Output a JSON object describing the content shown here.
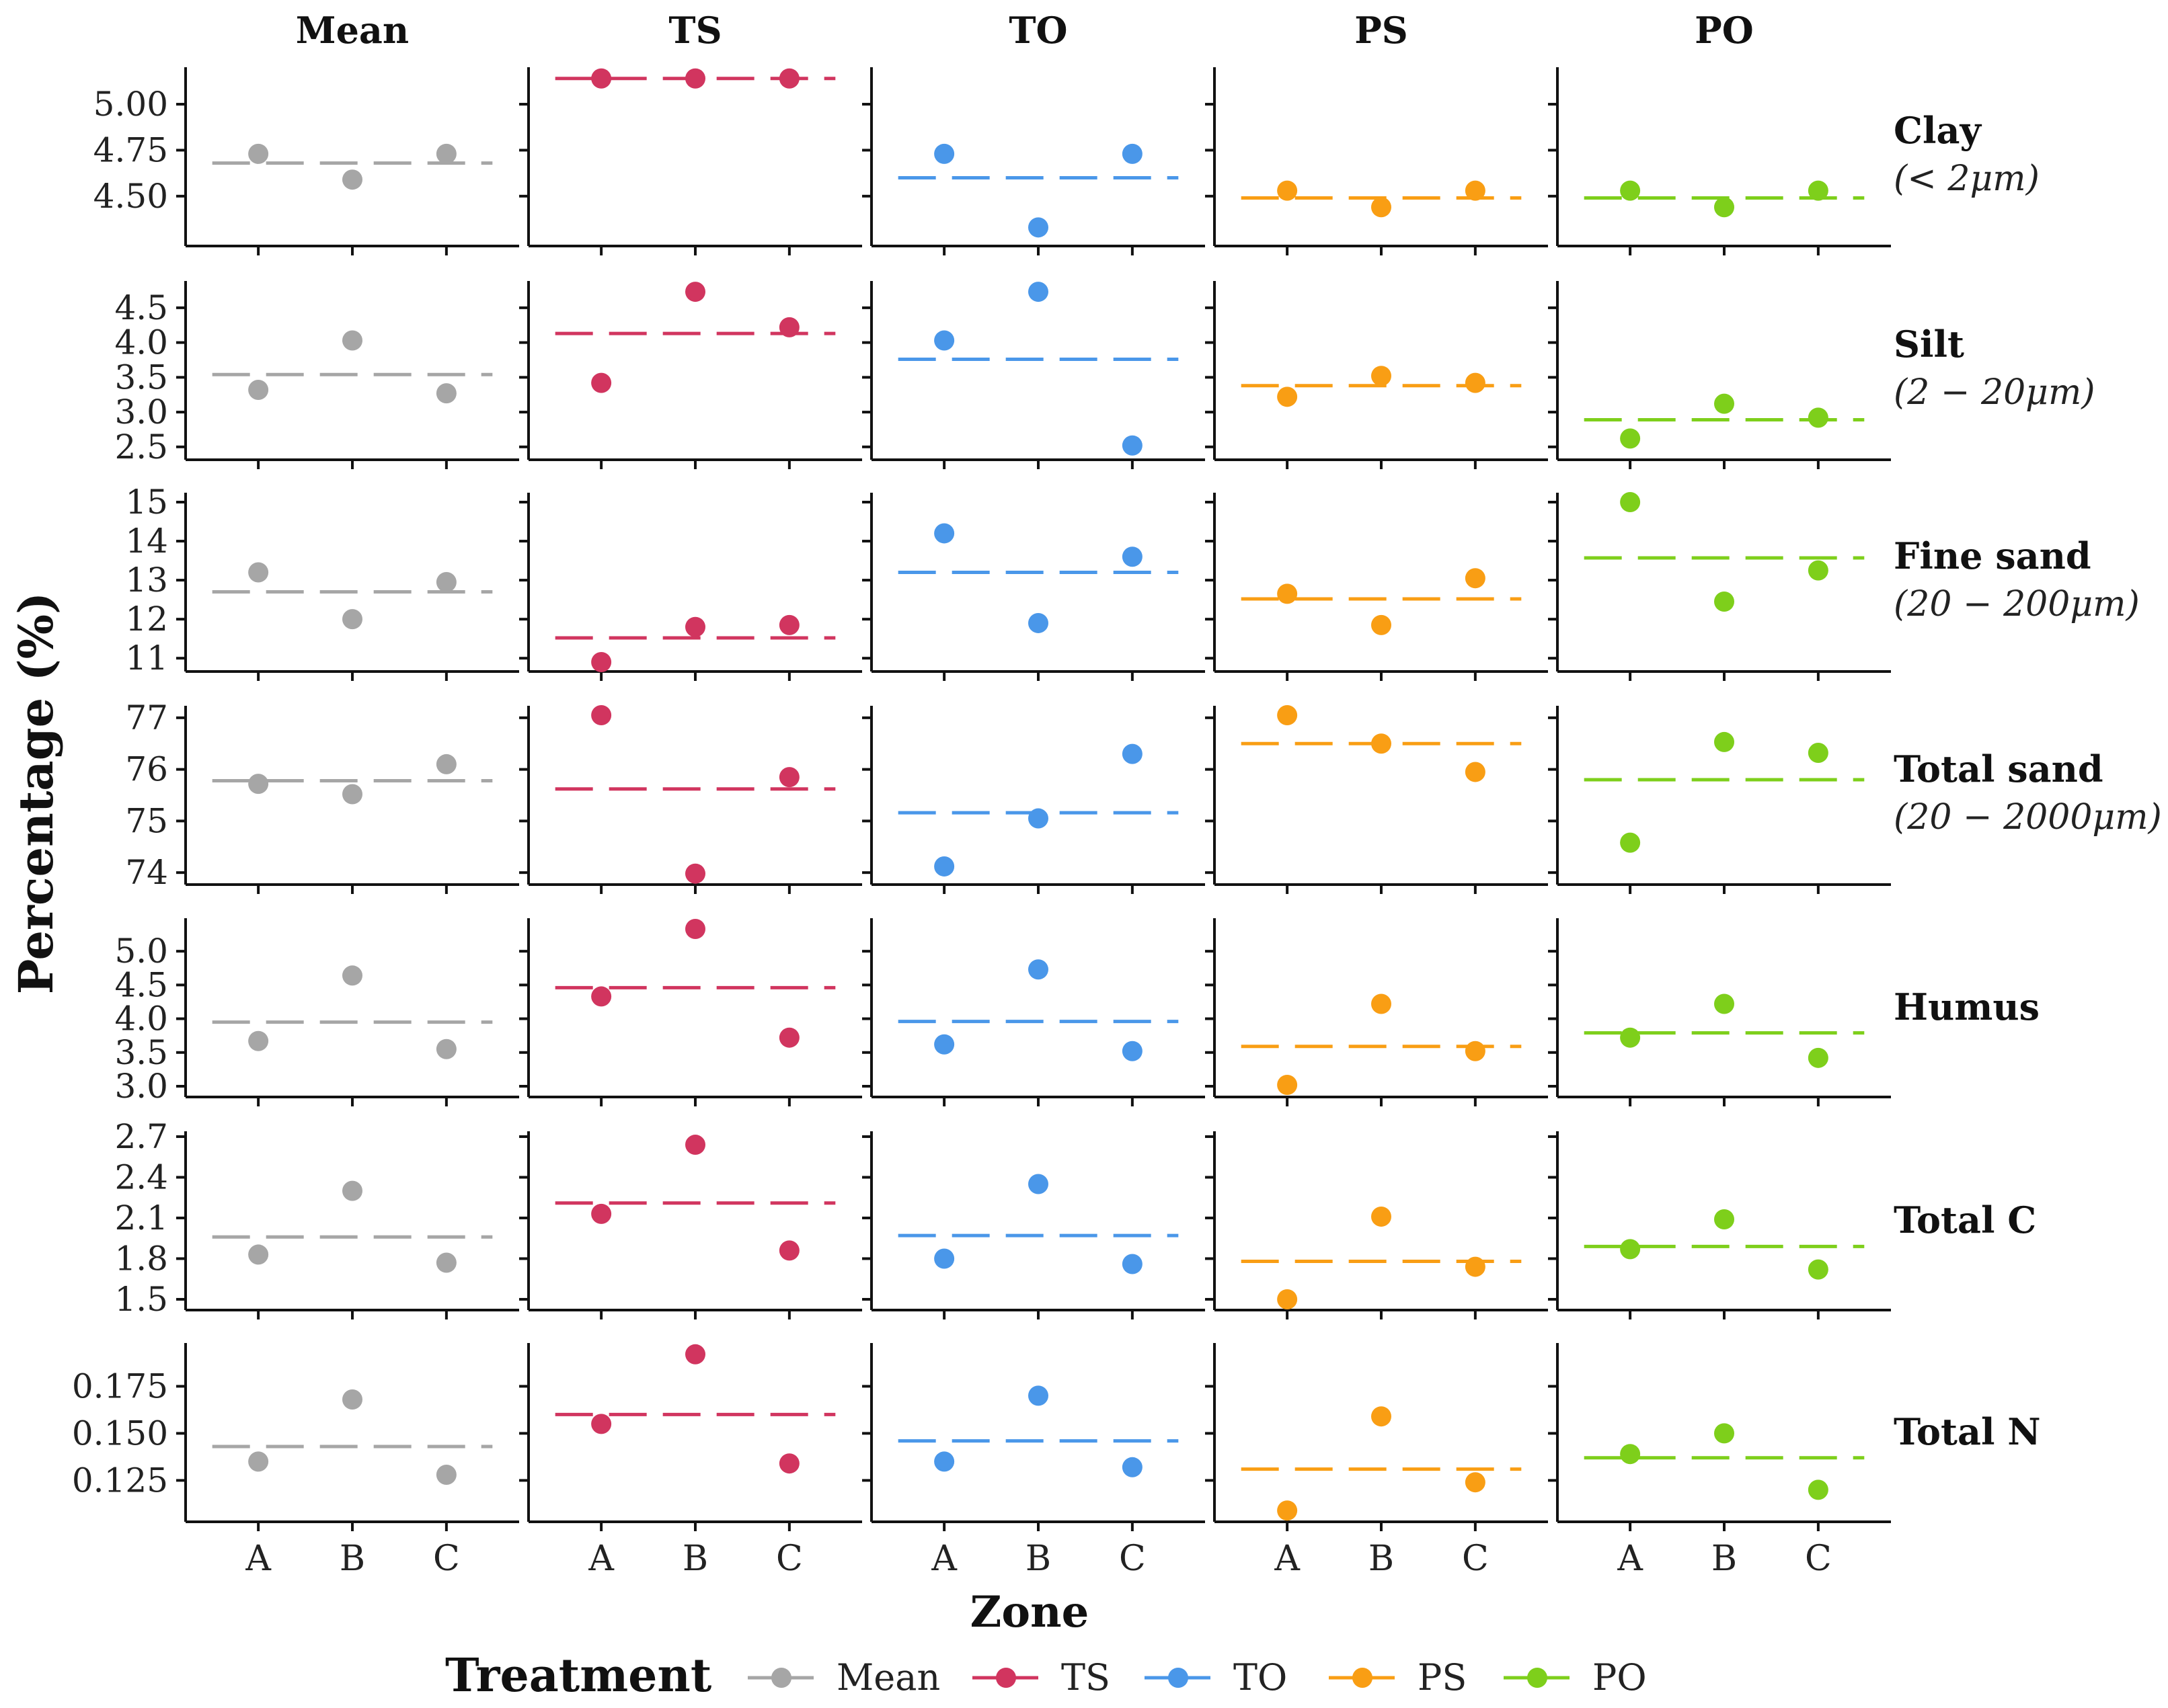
{
  "chart_data": {
    "type": "scatter",
    "subtype": "faceted dot plot with dashed group-mean lines",
    "columns": [
      "Mean",
      "TS",
      "TO",
      "PS",
      "PO"
    ],
    "zones": [
      "A",
      "B",
      "C"
    ],
    "xlabel": "Zone",
    "ylabel": "Percentage (%)",
    "legend": {
      "title": "Treatment",
      "position": "bottom",
      "entries": [
        "Mean",
        "TS",
        "TO",
        "PS",
        "PO"
      ]
    },
    "colors": {
      "Mean": "#a6a6a6",
      "TS": "#d1355f",
      "TO": "#4a97e9",
      "PS": "#f99e14",
      "PO": "#7ecf1b"
    },
    "rows": [
      {
        "name": "Clay",
        "unit": "(< 2μm)",
        "yrange": [
          4.28,
          5.15
        ],
        "ticks": [
          "4.50",
          "4.75",
          "5.00"
        ],
        "series": {
          "Mean": {
            "values": [
              4.73,
              4.59,
              4.73
            ],
            "mean": 4.68
          },
          "TS": {
            "values": [
              5.14,
              5.14,
              5.14
            ],
            "mean": 5.14
          },
          "TO": {
            "values": [
              4.73,
              4.33,
              4.73
            ],
            "mean": 4.6
          },
          "PS": {
            "values": [
              4.53,
              4.44,
              4.53
            ],
            "mean": 4.49
          },
          "PO": {
            "values": [
              4.53,
              4.44,
              4.53
            ],
            "mean": 4.49
          }
        }
      },
      {
        "name": "Silt",
        "unit": "(2 − 20μm)",
        "yrange": [
          2.45,
          4.75
        ],
        "ticks": [
          "2.5",
          "3.0",
          "3.5",
          "4.0",
          "4.5"
        ],
        "series": {
          "Mean": {
            "values": [
              3.32,
              4.03,
              3.27
            ],
            "mean": 3.54
          },
          "TS": {
            "values": [
              3.42,
              4.73,
              4.22
            ],
            "mean": 4.13
          },
          "TO": {
            "values": [
              4.03,
              4.73,
              2.52
            ],
            "mean": 3.76
          },
          "PS": {
            "values": [
              3.22,
              3.52,
              3.42
            ],
            "mean": 3.38
          },
          "PO": {
            "values": [
              2.62,
              3.12,
              2.92
            ],
            "mean": 2.89
          }
        }
      },
      {
        "name": "Fine sand",
        "unit": "(20 − 200μm)",
        "yrange": [
          10.9,
          15.0
        ],
        "ticks": [
          "11",
          "12",
          "13",
          "14",
          "15"
        ],
        "series": {
          "Mean": {
            "values": [
              13.2,
              12.0,
              12.95
            ],
            "mean": 12.7
          },
          "TS": {
            "values": [
              10.9,
              11.8,
              11.85
            ],
            "mean": 11.52
          },
          "TO": {
            "values": [
              14.2,
              11.9,
              13.6
            ],
            "mean": 13.2
          },
          "PS": {
            "values": [
              12.65,
              11.85,
              13.05
            ],
            "mean": 12.52
          },
          "PO": {
            "values": [
              15.0,
              12.45,
              13.25
            ],
            "mean": 13.57
          }
        }
      },
      {
        "name": "Total sand",
        "unit": "(20 − 2000μm)",
        "yrange": [
          73.95,
          77.05
        ],
        "ticks": [
          "74",
          "75",
          "76",
          "77"
        ],
        "series": {
          "Mean": {
            "values": [
              75.72,
              75.52,
              76.1
            ],
            "mean": 75.78
          },
          "TS": {
            "values": [
              77.05,
              73.98,
              75.85
            ],
            "mean": 75.62
          },
          "TO": {
            "values": [
              74.12,
              75.05,
              76.3
            ],
            "mean": 75.16
          },
          "PS": {
            "values": [
              77.05,
              76.5,
              75.95
            ],
            "mean": 76.5
          },
          "PO": {
            "values": [
              74.58,
              76.53,
              76.32
            ],
            "mean": 75.8
          }
        }
      },
      {
        "name": "Humus",
        "unit": "",
        "yrange": [
          2.98,
          5.35
        ],
        "ticks": [
          "3.0",
          "3.5",
          "4.0",
          "4.5",
          "5.0"
        ],
        "series": {
          "Mean": {
            "values": [
              3.67,
              4.64,
              3.55
            ],
            "mean": 3.95
          },
          "TS": {
            "values": [
              4.33,
              5.33,
              3.72
            ],
            "mean": 4.46
          },
          "TO": {
            "values": [
              3.62,
              4.73,
              3.52
            ],
            "mean": 3.96
          },
          "PS": {
            "values": [
              3.02,
              4.22,
              3.52
            ],
            "mean": 3.59
          },
          "PO": {
            "values": [
              3.72,
              4.22,
              3.42
            ],
            "mean": 3.79
          }
        }
      },
      {
        "name": "Total C",
        "unit": "",
        "yrange": [
          1.49,
          2.67
        ],
        "ticks": [
          "1.5",
          "1.8",
          "2.1",
          "2.4",
          "2.7"
        ],
        "series": {
          "Mean": {
            "values": [
              1.83,
              2.3,
              1.77
            ],
            "mean": 1.96
          },
          "TS": {
            "values": [
              2.13,
              2.64,
              1.86
            ],
            "mean": 2.21
          },
          "TO": {
            "values": [
              1.8,
              2.35,
              1.76
            ],
            "mean": 1.97
          },
          "PS": {
            "values": [
              1.5,
              2.11,
              1.74
            ],
            "mean": 1.78
          },
          "PO": {
            "values": [
              1.87,
              2.09,
              1.72
            ],
            "mean": 1.89
          }
        }
      },
      {
        "name": "Total N",
        "unit": "",
        "yrange": [
          0.108,
          0.193
        ],
        "ticks": [
          "0.125",
          "0.150",
          "0.175"
        ],
        "series": {
          "Mean": {
            "values": [
              0.135,
              0.168,
              0.128
            ],
            "mean": 0.143
          },
          "TS": {
            "values": [
              0.155,
              0.192,
              0.134
            ],
            "mean": 0.16
          },
          "TO": {
            "values": [
              0.135,
              0.17,
              0.132
            ],
            "mean": 0.146
          },
          "PS": {
            "values": [
              0.109,
              0.159,
              0.124
            ],
            "mean": 0.131
          },
          "PO": {
            "values": [
              0.139,
              0.15,
              0.12
            ],
            "mean": 0.137
          }
        }
      }
    ]
  }
}
